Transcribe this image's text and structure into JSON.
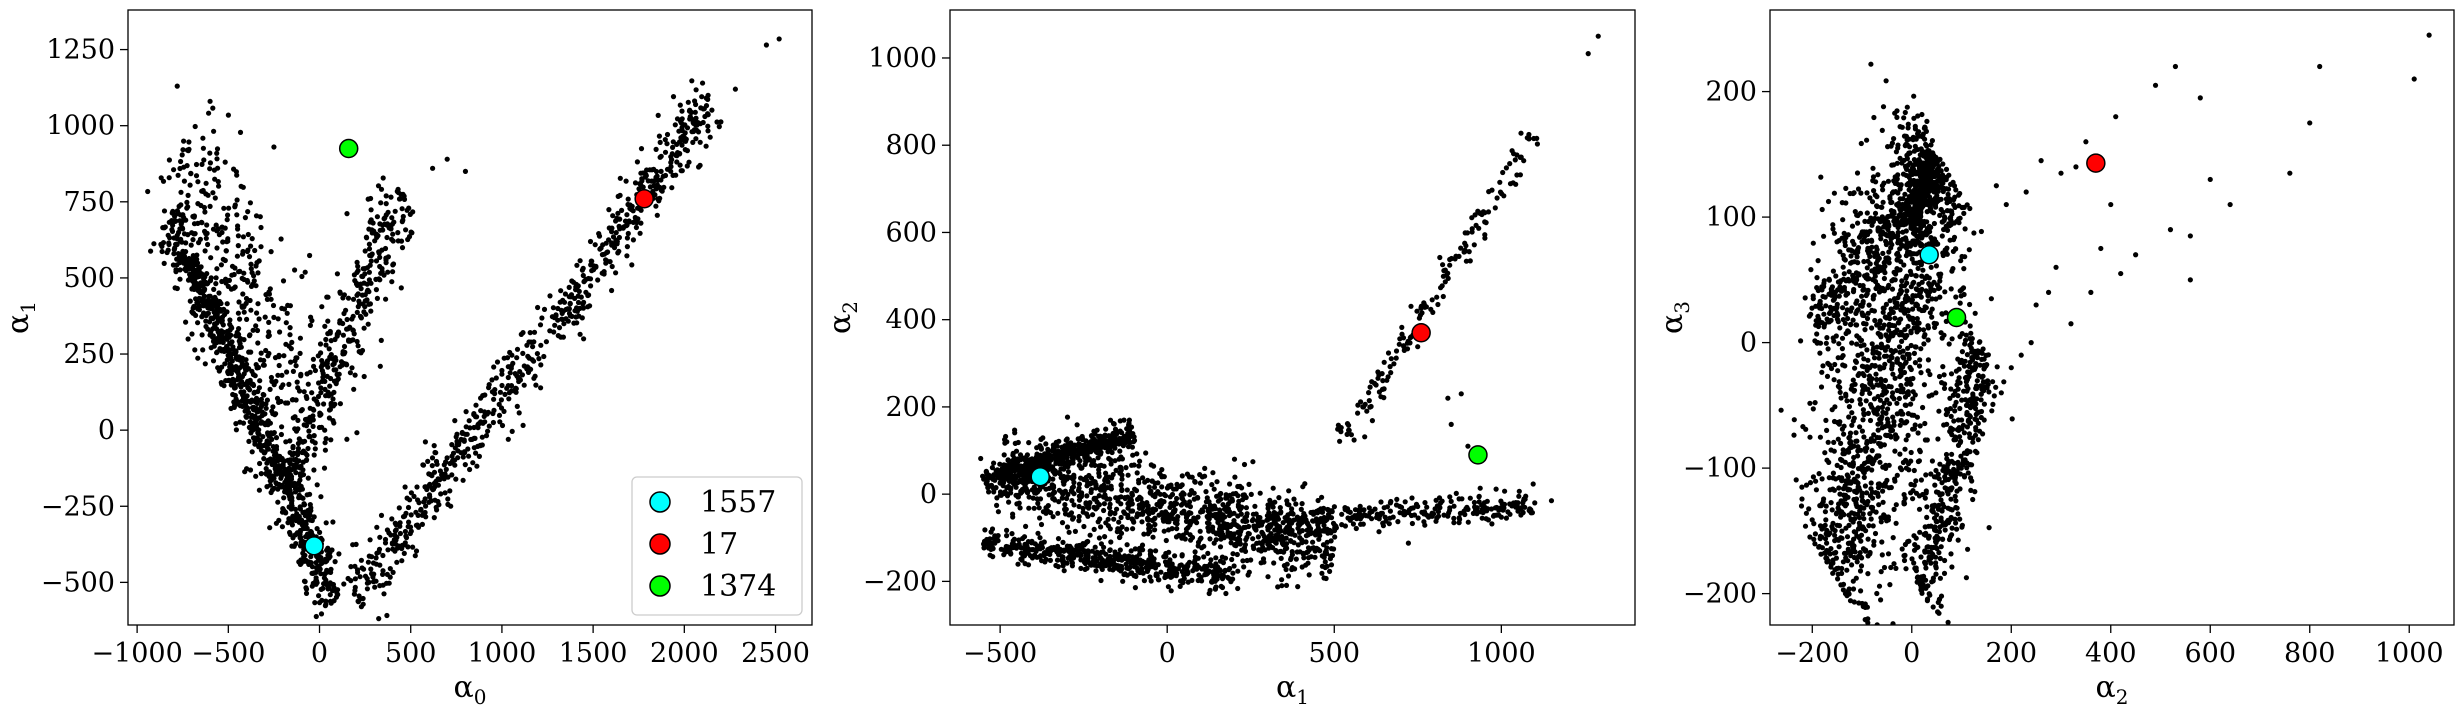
{
  "chart_data": [
    {
      "type": "scatter",
      "xlabel": "α0",
      "ylabel": "α1",
      "xlim": [
        -1050,
        2700
      ],
      "ylim": [
        -640,
        1380
      ],
      "x_ticks": [
        -1000,
        -500,
        0,
        500,
        1000,
        1500,
        2000,
        2500
      ],
      "y_ticks": [
        -500,
        -250,
        0,
        250,
        500,
        750,
        1000,
        1250
      ],
      "x_tick_labels": [
        "−1000",
        "−500",
        "0",
        "500",
        "1000",
        "1500",
        "2000",
        "2500"
      ],
      "y_tick_labels": [
        "−500",
        "−250",
        "0",
        "250",
        "500",
        "750",
        "1000",
        "1250"
      ],
      "grid": false,
      "legend_position": "lower-right",
      "highlights": [
        {
          "name": "1557",
          "x": -30,
          "y": -380,
          "color": "#00ffff"
        },
        {
          "name": "17",
          "x": 1780,
          "y": 760,
          "color": "#ff0000"
        },
        {
          "name": "1374",
          "x": 160,
          "y": 925,
          "color": "#00ff00"
        }
      ],
      "point_color": "#000000",
      "clusters": [
        {
          "x0": -820,
          "y0": 700,
          "x1": 80,
          "y1": -560,
          "n": 900,
          "spread": 55
        },
        {
          "x0": -750,
          "y0": 950,
          "x1": -150,
          "y1": 100,
          "n": 300,
          "spread": 140
        },
        {
          "x0": -200,
          "y0": -200,
          "x1": 450,
          "y1": 780,
          "n": 420,
          "spread": 75
        },
        {
          "x0": 200,
          "y0": -550,
          "x1": 2150,
          "y1": 1080,
          "n": 720,
          "spread": 55
        }
      ],
      "extra_points": [
        {
          "x": 2450,
          "y": 1265
        },
        {
          "x": 2520,
          "y": 1285
        },
        {
          "x": 2280,
          "y": 1120
        },
        {
          "x": 2100,
          "y": 1140
        },
        {
          "x": 700,
          "y": 890
        },
        {
          "x": 800,
          "y": 850
        },
        {
          "x": 620,
          "y": 860
        },
        {
          "x": -850,
          "y": 720
        },
        {
          "x": -780,
          "y": 1130
        },
        {
          "x": -600,
          "y": 1080
        },
        {
          "x": -250,
          "y": 930
        },
        {
          "x": 150,
          "y": -30
        }
      ]
    },
    {
      "type": "scatter",
      "xlabel": "α1",
      "ylabel": "α2",
      "xlim": [
        -650,
        1400
      ],
      "ylim": [
        -300,
        1110
      ],
      "x_ticks": [
        -500,
        0,
        500,
        1000
      ],
      "y_ticks": [
        -200,
        0,
        200,
        400,
        600,
        800,
        1000
      ],
      "x_tick_labels": [
        "−500",
        "0",
        "500",
        "1000"
      ],
      "y_tick_labels": [
        "−200",
        "0",
        "200",
        "400",
        "600",
        "800",
        "1000"
      ],
      "grid": false,
      "highlights": [
        {
          "name": "1557",
          "x": -380,
          "y": 40,
          "color": "#00ffff"
        },
        {
          "name": "17",
          "x": 760,
          "y": 370,
          "color": "#ff0000"
        },
        {
          "name": "1374",
          "x": 930,
          "y": 90,
          "color": "#00ff00"
        }
      ],
      "point_color": "#000000",
      "clusters": [
        {
          "x0": -550,
          "y0": 30,
          "x1": -100,
          "y1": 140,
          "n": 450,
          "spread": 18
        },
        {
          "x0": -500,
          "y0": 50,
          "x1": 500,
          "y1": -120,
          "n": 1100,
          "spread": 55
        },
        {
          "x0": -550,
          "y0": -110,
          "x1": 200,
          "y1": -190,
          "n": 500,
          "spread": 20
        },
        {
          "x0": 300,
          "y0": -60,
          "x1": 1100,
          "y1": -30,
          "n": 280,
          "spread": 20
        },
        {
          "x0": 520,
          "y0": 110,
          "x1": 1100,
          "y1": 830,
          "n": 160,
          "spread": 18
        }
      ],
      "extra_points": [
        {
          "x": 1260,
          "y": 1010
        },
        {
          "x": 1290,
          "y": 1050
        },
        {
          "x": 840,
          "y": 220
        },
        {
          "x": 880,
          "y": 230
        },
        {
          "x": 850,
          "y": 160
        },
        {
          "x": 900,
          "y": 110
        },
        {
          "x": 1100,
          "y": -20
        },
        {
          "x": 1150,
          "y": -15
        }
      ]
    },
    {
      "type": "scatter",
      "xlabel": "α2",
      "ylabel": "α3",
      "xlim": [
        -285,
        1090
      ],
      "ylim": [
        -225,
        265
      ],
      "x_ticks": [
        -200,
        0,
        200,
        400,
        600,
        800,
        1000
      ],
      "y_ticks": [
        -200,
        -100,
        0,
        100,
        200
      ],
      "x_tick_labels": [
        "−200",
        "0",
        "200",
        "400",
        "600",
        "800",
        "1000"
      ],
      "y_tick_labels": [
        "−200",
        "−100",
        "0",
        "100",
        "200"
      ],
      "grid": false,
      "highlights": [
        {
          "name": "1557",
          "x": 35,
          "y": 70,
          "color": "#00ffff"
        },
        {
          "name": "17",
          "x": 370,
          "y": 143,
          "color": "#ff0000"
        },
        {
          "name": "1374",
          "x": 90,
          "y": 20,
          "color": "#00ff00"
        }
      ],
      "point_color": "#000000",
      "clusters": [
        {
          "x0": -150,
          "y0": -190,
          "x1": 60,
          "y1": 145,
          "n": 1300,
          "spread": 55
        },
        {
          "x0": -200,
          "y0": 10,
          "x1": 50,
          "y1": 150,
          "n": 500,
          "spread": 30
        },
        {
          "x0": 20,
          "y0": -200,
          "x1": 140,
          "y1": 0,
          "n": 450,
          "spread": 25
        },
        {
          "x0": 0,
          "y0": 90,
          "x1": 40,
          "y1": 150,
          "n": 250,
          "spread": 12
        }
      ],
      "extra_points": [
        {
          "x": 1040,
          "y": 245
        },
        {
          "x": 1010,
          "y": 210
        },
        {
          "x": 820,
          "y": 220
        },
        {
          "x": 800,
          "y": 175
        },
        {
          "x": 760,
          "y": 135
        },
        {
          "x": 640,
          "y": 110
        },
        {
          "x": 600,
          "y": 130
        },
        {
          "x": 560,
          "y": 85
        },
        {
          "x": 580,
          "y": 195
        },
        {
          "x": 530,
          "y": 220
        },
        {
          "x": 490,
          "y": 205
        },
        {
          "x": 410,
          "y": 180
        },
        {
          "x": 400,
          "y": 110
        },
        {
          "x": 350,
          "y": 160
        },
        {
          "x": 330,
          "y": 140
        },
        {
          "x": 300,
          "y": 135
        },
        {
          "x": 260,
          "y": 145
        },
        {
          "x": 230,
          "y": 120
        },
        {
          "x": 190,
          "y": 110
        },
        {
          "x": 170,
          "y": 125
        },
        {
          "x": 450,
          "y": 70
        },
        {
          "x": 420,
          "y": 55
        },
        {
          "x": 360,
          "y": 40
        },
        {
          "x": 320,
          "y": 15
        },
        {
          "x": 290,
          "y": 60
        },
        {
          "x": 250,
          "y": 30
        },
        {
          "x": 240,
          "y": 0
        },
        {
          "x": 200,
          "y": -20
        },
        {
          "x": 180,
          "y": -40
        },
        {
          "x": 160,
          "y": 35
        },
        {
          "x": 560,
          "y": 50
        },
        {
          "x": 520,
          "y": 90
        },
        {
          "x": 380,
          "y": 75
        },
        {
          "x": 220,
          "y": -10
        },
        {
          "x": 275,
          "y": 40
        }
      ]
    }
  ]
}
